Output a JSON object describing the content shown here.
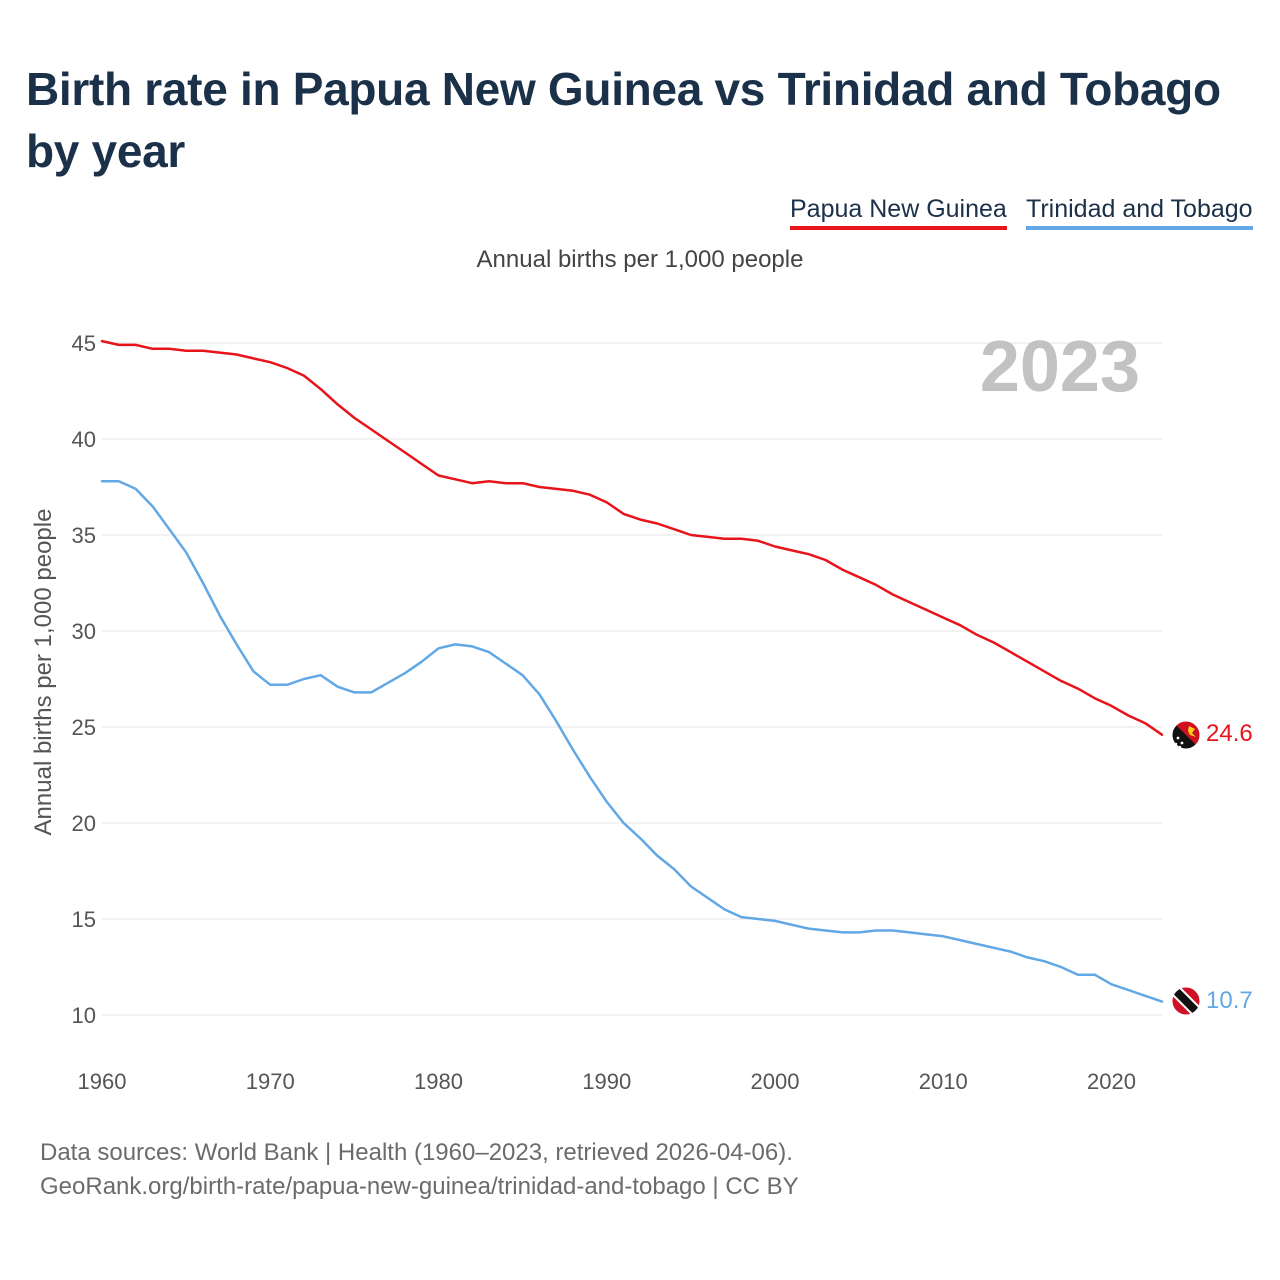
{
  "title": "Birth rate in Papua New Guinea vs Trinidad and Tobago by year",
  "legend": [
    "Papua New Guinea",
    "Trinidad and Tobago"
  ],
  "subtitle": "Annual births per 1,000 people",
  "year_watermark": "2023",
  "footer": {
    "line1": "Data sources: World Bank | Health (1960–2023, retrieved 2026-04-06).",
    "line2": "GeoRank.org/birth-rate/papua-new-guinea/trinidad-and-tobago | CC BY"
  },
  "colors": {
    "png": "#e8141c",
    "tt": "#62a8e5",
    "title": "#1b3049",
    "grid": "#e6e6e6"
  },
  "chart_data": {
    "type": "line",
    "title": "Birth rate in Papua New Guinea vs Trinidad and Tobago by year",
    "xlabel": "",
    "ylabel": "Annual births per 1,000 people",
    "xlim": [
      1960,
      2023
    ],
    "ylim": [
      10,
      45
    ],
    "x_ticks": [
      1960,
      1970,
      1980,
      1990,
      2000,
      2010,
      2020
    ],
    "y_ticks": [
      10,
      15,
      20,
      25,
      30,
      35,
      40,
      45
    ],
    "grid": true,
    "legend_position": "top-right",
    "x": [
      1960,
      1961,
      1962,
      1963,
      1964,
      1965,
      1966,
      1967,
      1968,
      1969,
      1970,
      1971,
      1972,
      1973,
      1974,
      1975,
      1976,
      1977,
      1978,
      1979,
      1980,
      1981,
      1982,
      1983,
      1984,
      1985,
      1986,
      1987,
      1988,
      1989,
      1990,
      1991,
      1992,
      1993,
      1994,
      1995,
      1996,
      1997,
      1998,
      1999,
      2000,
      2001,
      2002,
      2003,
      2004,
      2005,
      2006,
      2007,
      2008,
      2009,
      2010,
      2011,
      2012,
      2013,
      2014,
      2015,
      2016,
      2017,
      2018,
      2019,
      2020,
      2021,
      2022,
      2023
    ],
    "series": [
      {
        "name": "Papua New Guinea",
        "flag": "papua-new-guinea-flag",
        "end_label": "24.6",
        "values": [
          45.1,
          44.9,
          44.9,
          44.7,
          44.7,
          44.6,
          44.6,
          44.5,
          44.4,
          44.2,
          44.0,
          43.7,
          43.3,
          42.6,
          41.8,
          41.1,
          40.5,
          39.9,
          39.3,
          38.7,
          38.1,
          37.9,
          37.7,
          37.8,
          37.7,
          37.7,
          37.5,
          37.4,
          37.3,
          37.1,
          36.7,
          36.1,
          35.8,
          35.6,
          35.3,
          35.0,
          34.9,
          34.8,
          34.8,
          34.7,
          34.4,
          34.2,
          34.0,
          33.7,
          33.2,
          32.8,
          32.4,
          31.9,
          31.5,
          31.1,
          30.7,
          30.3,
          29.8,
          29.4,
          28.9,
          28.4,
          27.9,
          27.4,
          27.0,
          26.5,
          26.1,
          25.6,
          25.2,
          24.6
        ]
      },
      {
        "name": "Trinidad and Tobago",
        "flag": "trinidad-and-tobago-flag",
        "end_label": "10.7",
        "values": [
          37.8,
          37.8,
          37.4,
          36.5,
          35.3,
          34.1,
          32.5,
          30.8,
          29.3,
          27.9,
          27.2,
          27.2,
          27.5,
          27.7,
          27.1,
          26.8,
          26.8,
          27.3,
          27.8,
          28.4,
          29.1,
          29.3,
          29.2,
          28.9,
          28.3,
          27.7,
          26.7,
          25.3,
          23.8,
          22.4,
          21.1,
          20.0,
          19.2,
          18.3,
          17.6,
          16.7,
          16.1,
          15.5,
          15.1,
          15.0,
          14.9,
          14.7,
          14.5,
          14.4,
          14.3,
          14.3,
          14.4,
          14.4,
          14.3,
          14.2,
          14.1,
          13.9,
          13.7,
          13.5,
          13.3,
          13.0,
          12.8,
          12.5,
          12.1,
          12.1,
          11.6,
          11.3,
          11.0,
          10.7
        ]
      }
    ]
  }
}
